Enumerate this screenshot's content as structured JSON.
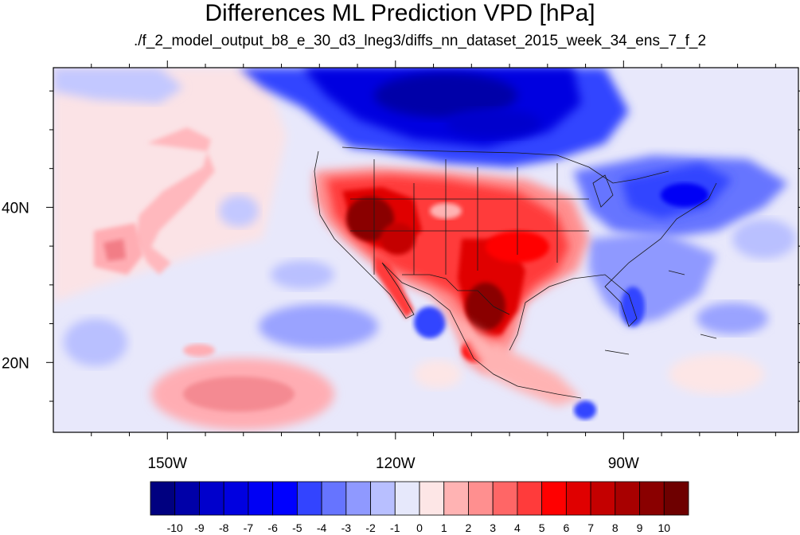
{
  "title": "Differences ML Prediction VPD [hPa]",
  "subtitle": "./f_2_model_output_b8_e_30_d3_lneg3/diffs_nn_dataset_2015_week_34_ens_7_f_2",
  "map": {
    "lon_range": [
      -165,
      -67
    ],
    "lat_range": [
      11,
      58
    ],
    "lon_ticks": [
      {
        "value": -150,
        "label": "150W"
      },
      {
        "value": -120,
        "label": "120W"
      },
      {
        "value": -90,
        "label": "90W"
      }
    ],
    "lat_ticks": [
      {
        "value": 40,
        "label": "40N"
      },
      {
        "value": 20,
        "label": "20N"
      }
    ]
  },
  "colorbar": {
    "labels": [
      "-10",
      "-9",
      "-8",
      "-7",
      "-6",
      "-5",
      "-4",
      "-3",
      "-2",
      "-1",
      "0",
      "1",
      "2",
      "3",
      "4",
      "5",
      "6",
      "7",
      "8",
      "9",
      "10"
    ],
    "colors": [
      "#000080",
      "#0000a8",
      "#0000cc",
      "#0000e0",
      "#0000f5",
      "#0000ff",
      "#3344ff",
      "#6674ff",
      "#8f99ff",
      "#b8bfff",
      "#e6e8fb",
      "#fde6e6",
      "#ffb3b3",
      "#ff8f8f",
      "#ff6666",
      "#ff3b3b",
      "#ff0000",
      "#e00000",
      "#c40000",
      "#a80000",
      "#8a0000",
      "#6e0000"
    ]
  }
}
